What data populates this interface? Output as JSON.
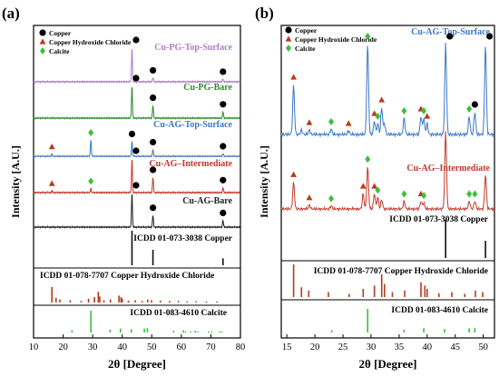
{
  "colors": {
    "pg_top": "#b07cc6",
    "pg_bare": "#2e8b2e",
    "ag_top": "#3a78c8",
    "ag_int": "#c0392b",
    "ag_bare": "#222222",
    "ref": "#111111",
    "chloride": "#b83a1c",
    "calcite": "#3cc03c",
    "copper": "#000000"
  },
  "chart_data": [
    {
      "panel_label": "(a)",
      "type": "line",
      "xlabel": "2θ [Degree]",
      "ylabel": "Intensity [A.U.]",
      "xlim": [
        10,
        80
      ],
      "x_ticks": [
        "10",
        "20",
        "30",
        "40",
        "50",
        "60",
        "70",
        "80"
      ],
      "legend": [
        {
          "name": "Copper",
          "marker": "circle"
        },
        {
          "name": "Copper Hydroxide Chloride",
          "marker": "triangle"
        },
        {
          "name": "Calcite",
          "marker": "diamond"
        }
      ],
      "series": [
        {
          "name": "Cu-PG-Top-Surface",
          "color_key": "pg_top",
          "peaks": [
            [
              43.3,
              1.0
            ],
            [
              50.4,
              0.12
            ],
            [
              74.1,
              0.08
            ]
          ],
          "markers": [
            [
              "circle",
              43.3
            ],
            [
              "circle",
              50.4
            ],
            [
              "circle",
              74.1
            ]
          ]
        },
        {
          "name": "Cu-PG-Bare",
          "color_key": "pg_bare",
          "peaks": [
            [
              43.3,
              1.0
            ],
            [
              50.4,
              0.4
            ],
            [
              74.1,
              0.2
            ]
          ],
          "markers": [
            [
              "circle",
              43.3
            ],
            [
              "circle",
              50.4
            ],
            [
              "circle",
              74.1
            ]
          ]
        },
        {
          "name": "Cu-AG-Top-Surface",
          "color_key": "ag_top",
          "peaks": [
            [
              16.2,
              0.08
            ],
            [
              29.4,
              0.6
            ],
            [
              43.3,
              0.55
            ],
            [
              50.4,
              0.25
            ],
            [
              74.1,
              0.1
            ]
          ],
          "markers": [
            [
              "triangle",
              16.2
            ],
            [
              "diamond",
              29.4
            ],
            [
              "circle",
              43.3
            ],
            [
              "circle",
              50.4
            ],
            [
              "circle",
              74.1
            ]
          ]
        },
        {
          "name": "Cu-AG–Intermediate",
          "color_key": "ag_int",
          "peaks": [
            [
              16.2,
              0.05
            ],
            [
              29.4,
              0.12
            ],
            [
              43.3,
              1.0
            ],
            [
              50.4,
              0.45
            ],
            [
              74.1,
              0.15
            ]
          ],
          "markers": [
            [
              "triangle",
              16.2
            ],
            [
              "diamond",
              29.4
            ],
            [
              "circle",
              43.3
            ],
            [
              "circle",
              50.4
            ],
            [
              "circle",
              74.1
            ]
          ]
        },
        {
          "name": "Cu-AG-Bare",
          "color_key": "ag_bare",
          "peaks": [
            [
              43.3,
              1.0
            ],
            [
              50.4,
              0.35
            ],
            [
              74.1,
              0.2
            ]
          ],
          "markers": [
            [
              "circle",
              43.3
            ],
            [
              "circle",
              50.4
            ],
            [
              "circle",
              74.1
            ]
          ]
        }
      ],
      "references": [
        {
          "name": "ICDD 01-073-3038 Copper",
          "color_key": "ref",
          "lines": [
            [
              43.3,
              1.0
            ],
            [
              50.4,
              0.45
            ],
            [
              74.1,
              0.2
            ]
          ]
        },
        {
          "name": "ICDD 01-078-7707 Copper Hydroxide  Chloride",
          "color_key": "chloride",
          "lines": [
            [
              16.2,
              1.0
            ],
            [
              17.6,
              0.3
            ],
            [
              18.9,
              0.2
            ],
            [
              22.4,
              0.15
            ],
            [
              26.1,
              0.1
            ],
            [
              28.6,
              0.25
            ],
            [
              30.6,
              0.35
            ],
            [
              31.9,
              0.7
            ],
            [
              32.4,
              0.4
            ],
            [
              33.8,
              0.15
            ],
            [
              36.0,
              0.2
            ],
            [
              38.9,
              0.45
            ],
            [
              39.6,
              0.35
            ],
            [
              40.0,
              0.25
            ],
            [
              42.1,
              0.12
            ],
            [
              44.4,
              0.15
            ],
            [
              46.7,
              0.1
            ],
            [
              48.6,
              0.2
            ],
            [
              49.9,
              0.15
            ],
            [
              52.9,
              0.12
            ],
            [
              56.0,
              0.1
            ],
            [
              59.0,
              0.1
            ],
            [
              62.0,
              0.08
            ],
            [
              65.0,
              0.08
            ],
            [
              68.5,
              0.07
            ],
            [
              72.0,
              0.07
            ]
          ]
        },
        {
          "name": "ICDD 01-083-4610 Calcite",
          "color_key": "calcite",
          "lines": [
            [
              23.0,
              0.1
            ],
            [
              29.4,
              1.0
            ],
            [
              35.9,
              0.12
            ],
            [
              39.4,
              0.18
            ],
            [
              43.1,
              0.15
            ],
            [
              47.5,
              0.18
            ],
            [
              48.5,
              0.2
            ],
            [
              57.4,
              0.08
            ],
            [
              60.7,
              0.1
            ],
            [
              61.4,
              0.05
            ],
            [
              63.1,
              0.05
            ],
            [
              64.7,
              0.08
            ],
            [
              65.6,
              0.05
            ],
            [
              69.2,
              0.05
            ],
            [
              70.2,
              0.05
            ],
            [
              72.9,
              0.05
            ],
            [
              73.7,
              0.05
            ]
          ]
        }
      ]
    },
    {
      "panel_label": "(b)",
      "type": "line",
      "xlabel": "2θ [Degree]",
      "ylabel": "Intensity [A.U.]",
      "xlim": [
        14,
        52
      ],
      "x_ticks": [
        "15",
        "20",
        "25",
        "30",
        "35",
        "40",
        "45",
        "50"
      ],
      "legend": [
        {
          "name": "Copper",
          "marker": "circle"
        },
        {
          "name": "Copper Hydroxide Chloride",
          "marker": "triangle"
        },
        {
          "name": "Calcite",
          "marker": "diamond"
        }
      ],
      "series": [
        {
          "name": "Cu-AG-Top-Surface",
          "color_key": "ag_top",
          "peaks": [
            [
              16.2,
              0.55
            ],
            [
              17.6,
              0.05
            ],
            [
              19.0,
              0.05
            ],
            [
              22.9,
              0.06
            ],
            [
              26.0,
              0.04
            ],
            [
              29.4,
              1.0
            ],
            [
              30.6,
              0.15
            ],
            [
              31.2,
              0.12
            ],
            [
              31.9,
              0.3
            ],
            [
              32.4,
              0.12
            ],
            [
              35.9,
              0.18
            ],
            [
              38.9,
              0.2
            ],
            [
              39.4,
              0.18
            ],
            [
              40.0,
              0.12
            ],
            [
              43.3,
              1.0
            ],
            [
              47.5,
              0.2
            ],
            [
              48.5,
              0.25
            ],
            [
              50.4,
              1.0
            ]
          ],
          "markers": [
            [
              "triangle",
              16.2
            ],
            [
              "triangle",
              19.0
            ],
            [
              "diamond",
              22.9
            ],
            [
              "triangle",
              26.0
            ],
            [
              "diamond",
              29.4
            ],
            [
              "triangle",
              30.6
            ],
            [
              "diamond",
              31.2
            ],
            [
              "triangle",
              31.9
            ],
            [
              "diamond",
              35.9
            ],
            [
              "triangle",
              38.9
            ],
            [
              "diamond",
              39.4
            ],
            [
              "triangle",
              40.0
            ],
            [
              "circle",
              43.3
            ],
            [
              "diamond",
              47.5
            ],
            [
              "circle",
              48.5
            ],
            [
              "circle",
              50.4
            ]
          ]
        },
        {
          "name": "Cu-AG–Intermediate",
          "color_key": "ag_int",
          "peaks": [
            [
              16.2,
              0.35
            ],
            [
              19.0,
              0.05
            ],
            [
              22.9,
              0.04
            ],
            [
              28.6,
              0.2
            ],
            [
              29.4,
              0.55
            ],
            [
              30.6,
              0.2
            ],
            [
              31.2,
              0.15
            ],
            [
              31.9,
              0.12
            ],
            [
              35.9,
              0.1
            ],
            [
              38.9,
              0.1
            ],
            [
              39.4,
              0.08
            ],
            [
              43.3,
              1.0
            ],
            [
              47.5,
              0.1
            ],
            [
              48.5,
              0.1
            ],
            [
              50.4,
              0.45
            ]
          ],
          "markers": [
            [
              "triangle",
              16.2
            ],
            [
              "triangle",
              19.0
            ],
            [
              "diamond",
              22.9
            ],
            [
              "triangle",
              28.6
            ],
            [
              "diamond",
              29.4
            ],
            [
              "triangle",
              30.6
            ],
            [
              "diamond",
              31.2
            ],
            [
              "diamond",
              35.9
            ],
            [
              "triangle",
              38.9
            ],
            [
              "diamond",
              39.4
            ],
            [
              "diamond",
              47.5
            ],
            [
              "diamond",
              48.5
            ]
          ]
        }
      ],
      "references": [
        {
          "name": "ICDD 01-073-3038 Copper",
          "color_key": "ref",
          "lines": [
            [
              43.3,
              1.0
            ],
            [
              50.4,
              0.45
            ]
          ]
        },
        {
          "name": "ICDD 01-078-7707 Copper Hydroxide  Chloride",
          "color_key": "chloride",
          "lines": [
            [
              16.2,
              1.0
            ],
            [
              17.6,
              0.3
            ],
            [
              18.9,
              0.2
            ],
            [
              22.4,
              0.15
            ],
            [
              26.1,
              0.1
            ],
            [
              28.6,
              0.25
            ],
            [
              30.6,
              0.35
            ],
            [
              31.9,
              0.7
            ],
            [
              32.4,
              0.4
            ],
            [
              33.8,
              0.15
            ],
            [
              36.0,
              0.2
            ],
            [
              38.9,
              0.45
            ],
            [
              39.6,
              0.35
            ],
            [
              40.0,
              0.25
            ],
            [
              42.1,
              0.12
            ],
            [
              44.4,
              0.15
            ],
            [
              46.7,
              0.1
            ],
            [
              48.6,
              0.2
            ],
            [
              49.9,
              0.15
            ]
          ]
        },
        {
          "name": "ICDD 01-083-4610 Calcite",
          "color_key": "calcite",
          "lines": [
            [
              23.0,
              0.1
            ],
            [
              29.4,
              1.0
            ],
            [
              35.9,
              0.12
            ],
            [
              39.4,
              0.18
            ],
            [
              43.1,
              0.15
            ],
            [
              47.5,
              0.18
            ],
            [
              48.5,
              0.2
            ]
          ]
        }
      ]
    }
  ]
}
